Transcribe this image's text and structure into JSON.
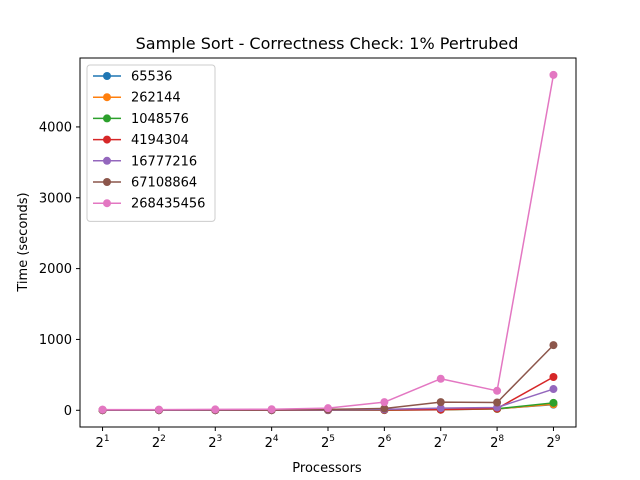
{
  "chart_data": {
    "type": "line",
    "title": "Sample Sort - Correctness Check: 1% Pertrubed",
    "xlabel": "Processors",
    "ylabel": "Time (seconds)",
    "x_base": "2",
    "x_exponents": [
      1,
      2,
      3,
      4,
      5,
      6,
      7,
      8,
      9
    ],
    "x_exponent_labels": [
      "1",
      "2",
      "3",
      "4",
      "5",
      "6",
      "7",
      "8",
      "9"
    ],
    "y_ticks": [
      0,
      1000,
      2000,
      3000,
      4000
    ],
    "y_tick_labels": [
      "0",
      "1000",
      "2000",
      "3000",
      "4000"
    ],
    "ylim": [
      -236,
      4973
    ],
    "legend_position": "upper-left",
    "grid": false,
    "series": [
      {
        "name": "65536",
        "color": "#1f77b4",
        "values": [
          1,
          1,
          1,
          1,
          2,
          3,
          8,
          20,
          80
        ]
      },
      {
        "name": "262144",
        "color": "#ff7f0e",
        "values": [
          1,
          1,
          1,
          1,
          2,
          3,
          8,
          20,
          85
        ]
      },
      {
        "name": "1048576",
        "color": "#2ca02c",
        "values": [
          1,
          1,
          1,
          2,
          2,
          4,
          10,
          22,
          105
        ]
      },
      {
        "name": "4194304",
        "color": "#d62728",
        "values": [
          2,
          2,
          2,
          3,
          4,
          6,
          10,
          25,
          470
        ]
      },
      {
        "name": "16777216",
        "color": "#9467bd",
        "values": [
          3,
          3,
          3,
          4,
          6,
          12,
          30,
          40,
          300
        ]
      },
      {
        "name": "67108864",
        "color": "#8c564b",
        "values": [
          5,
          5,
          5,
          7,
          12,
          25,
          115,
          110,
          920
        ]
      },
      {
        "name": "268435456",
        "color": "#e377c2",
        "values": [
          10,
          10,
          12,
          15,
          30,
          115,
          445,
          275,
          4735
        ]
      }
    ]
  }
}
